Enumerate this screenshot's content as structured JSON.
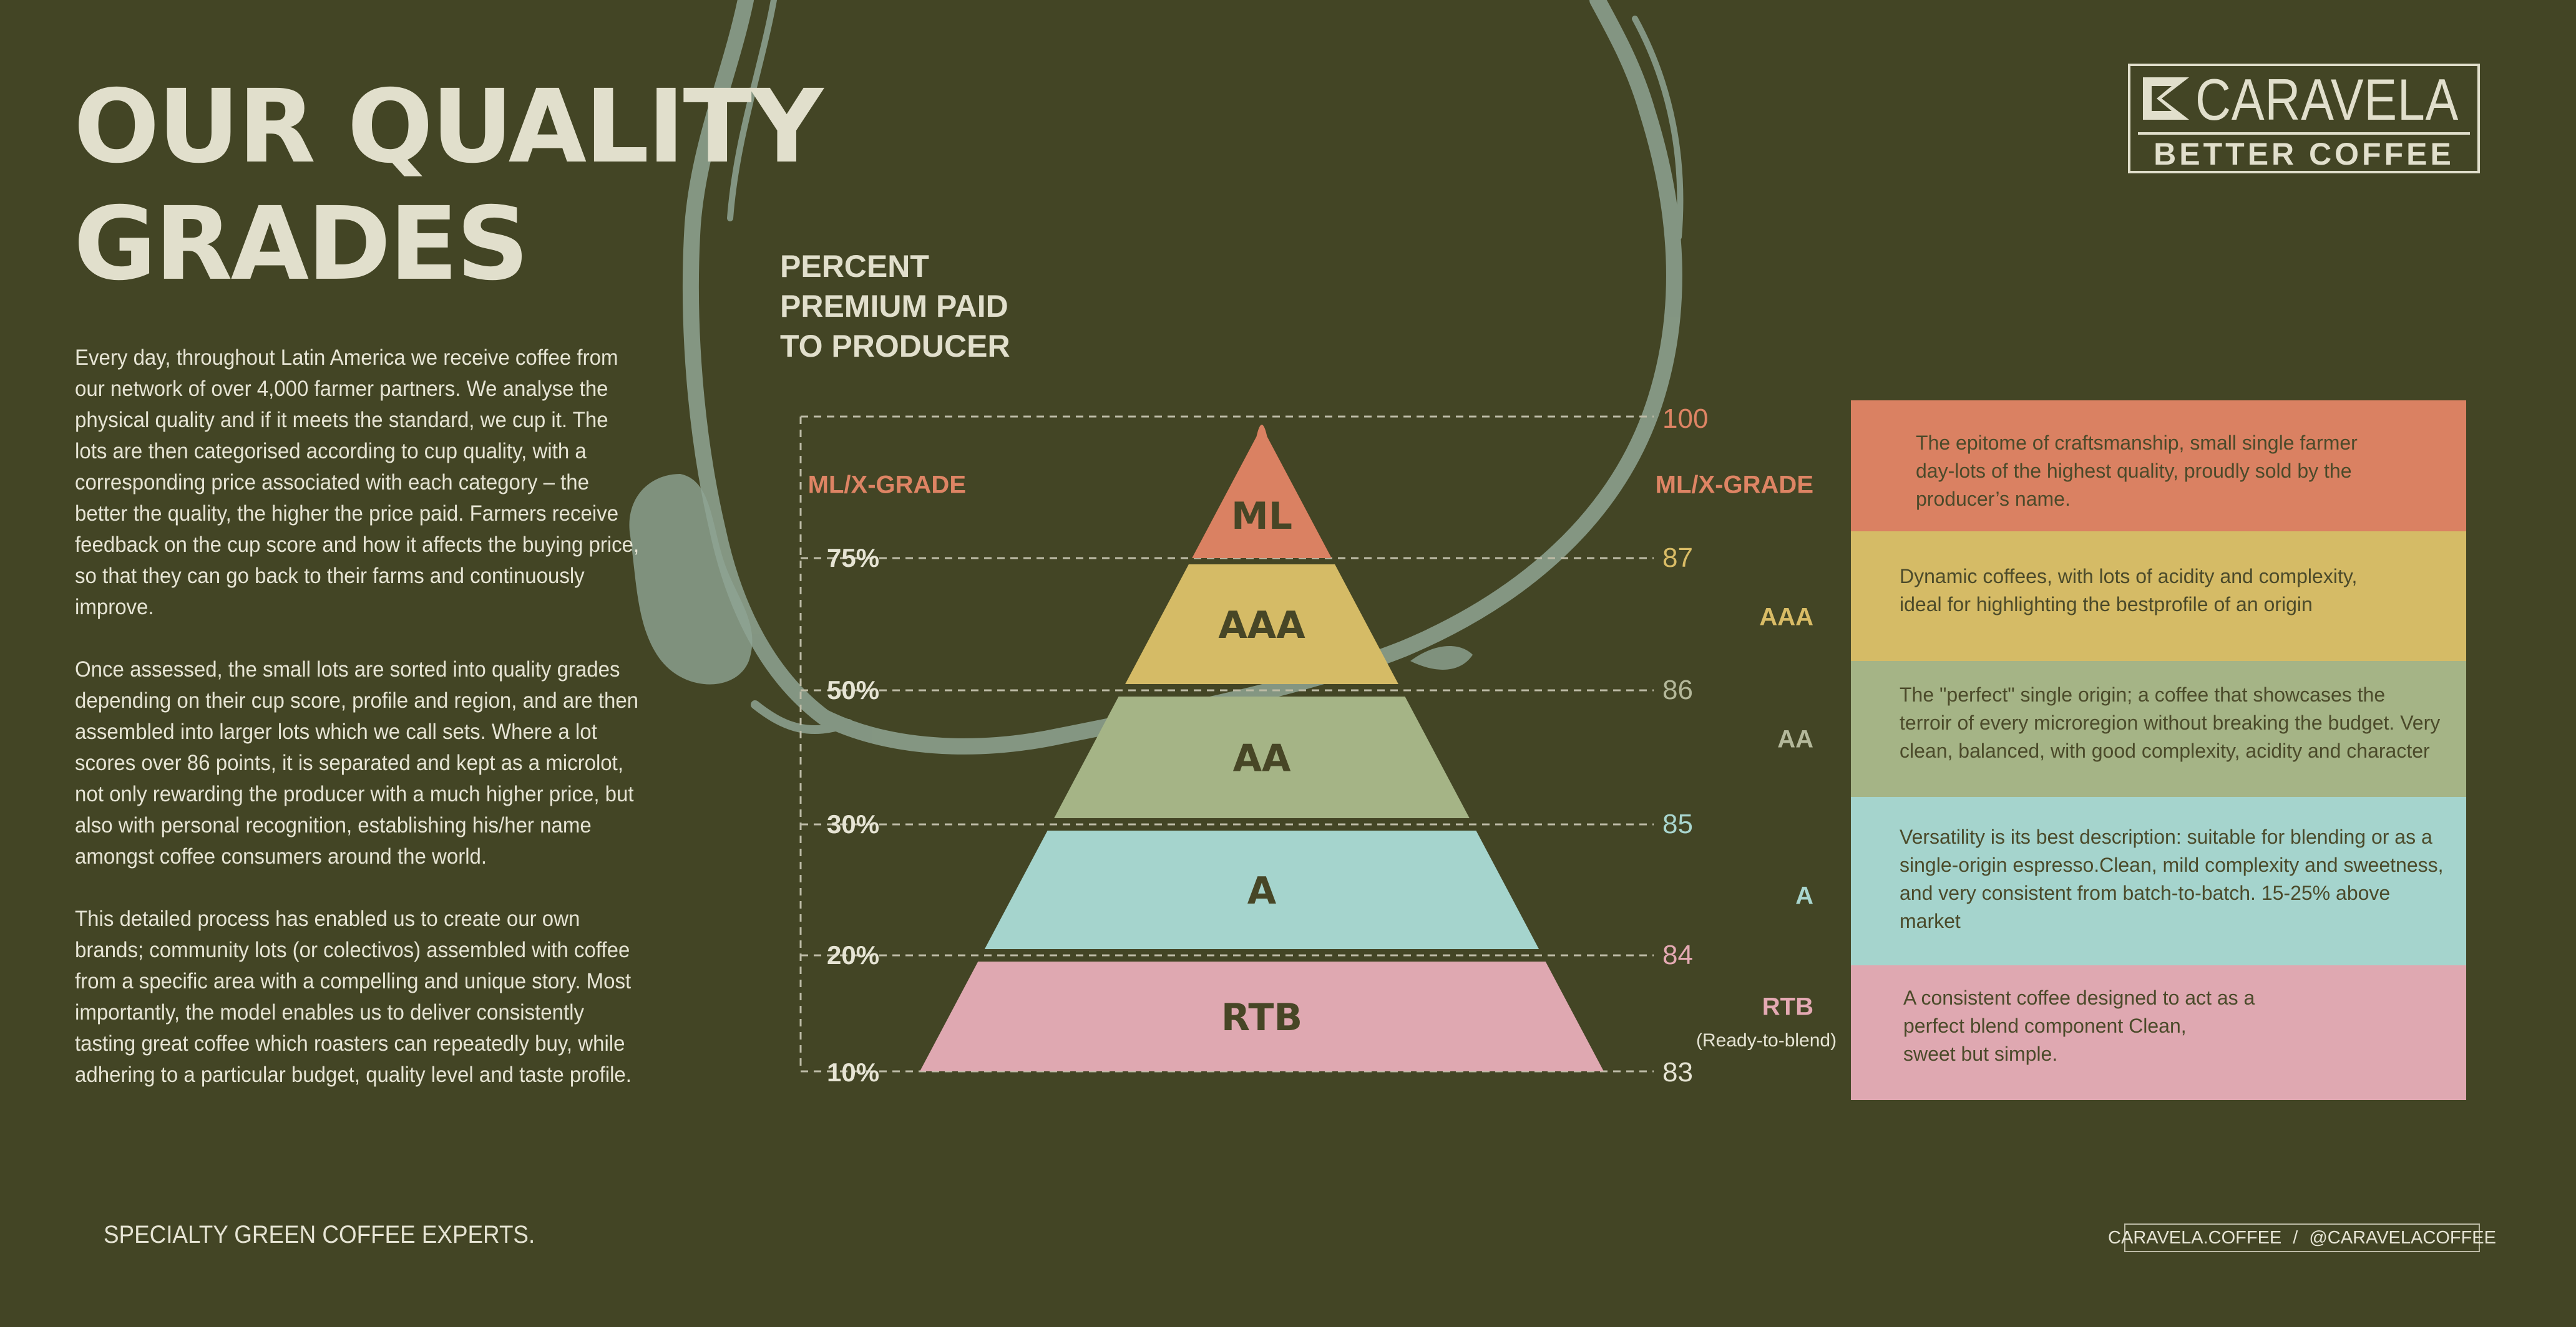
{
  "header": {
    "title_lines": [
      "OUR QUALITY",
      "GRADES"
    ]
  },
  "intro": {
    "paragraphs": [
      "Every day, throughout Latin America we receive coffee from our network of over 4,000 farmer partners. We analyse the physical quality and if it meets the standard, we cup it. The lots are then categorised according to cup quality, with a corresponding price associated with each category – the better the quality, the higher the price paid. Farmers receive feedback on the cup score and how it affects the buying price, so that they can go back to their farms and continuously improve.",
      "Once assessed, the small lots are sorted into quality grades depending on their cup score, profile and region, and are then assembled into larger lots which we call sets.  Where a lot scores over 86 points, it is separated and kept as a microlot, not only rewarding the producer with a much higher price, but also with personal recognition, establishing his/her name amongst coffee consumers around the world.",
      "This detailed process has enabled us to create our own brands; community lots (or colectivos) assembled with coffee from a specific area with a compelling and unique story. Most importantly, the model enables us to deliver consistently tasting great coffee which roasters can repeatedly buy, while adhering to a particular budget, quality level and taste profile."
    ]
  },
  "chart": {
    "title_lines": [
      "PERCENT",
      "PREMIUM PAID",
      "TO PRODUCER"
    ],
    "left_grade_label": "ML/X-GRADE",
    "levels": [
      {
        "percent": "75%",
        "score": "87",
        "score_color": "#d9bc66"
      },
      {
        "percent": "50%",
        "score": "86",
        "score_color": "#b4b89a"
      },
      {
        "percent": "30%",
        "score": "85",
        "score_color": "#a9d6cf"
      },
      {
        "percent": "20%",
        "score": "84",
        "score_color": "#e4a9b3"
      },
      {
        "percent": "10%",
        "score": "83",
        "score_color": "#e6e4d4"
      }
    ],
    "top_score": {
      "score": "100",
      "color": "#de8464"
    },
    "tiers": [
      {
        "label": "ML",
        "color": "#da8162",
        "side_label": "ML/X-GRADE",
        "side_color": "#de8464",
        "description": [
          "The epitome of craftsmanship, small single farmer",
          "day-lots of the highest quality, proudly sold by the",
          "producer’s name."
        ]
      },
      {
        "label": "AAA",
        "color": "#d5bb66",
        "side_label": "AAA",
        "side_color": "#d9bc66",
        "description": [
          "Dynamic coffees, with lots of acidity and complexity,",
          "ideal for highlighting the bestprofile of an origin"
        ]
      },
      {
        "label": "AA",
        "color": "#a5b486",
        "side_label": "AA",
        "side_color": "#b4b89a",
        "description": [
          "The \"perfect\" single origin; a coffee that showcases the",
          "terroir of every microregion without breaking the budget. Very",
          "clean, balanced, with good complexity, acidity and character"
        ]
      },
      {
        "label": "A",
        "color": "#a5d4cd",
        "side_label": "A",
        "side_color": "#a9d6cf",
        "description": [
          "Versatility is its best description: suitable for blending or as a",
          "single-origin espresso.Clean, mild complexity and sweetness,",
          "and very consistent from batch-to-batch. 15-25% above",
          "market"
        ]
      },
      {
        "label": "RTB",
        "color": "#dfa8b1",
        "side_label": "RTB",
        "side_color": "#e4a9b3",
        "description": [
          "A consistent coffee designed to act as a",
          "perfect blend component Clean,",
          " sweet but simple."
        ]
      }
    ],
    "rtb_note": "(Ready-to-blend)",
    "tier_text_color": "#474626"
  },
  "brand": {
    "name": "CARAVELA",
    "tagline": "BETTER COFFEE"
  },
  "footer": {
    "slogan": "SPECIALTY  GREEN COFFEE EXPERTS.",
    "website": "CARAVELA.COFFEE",
    "separator": "/",
    "social": "@CARAVELACOFFEE"
  }
}
